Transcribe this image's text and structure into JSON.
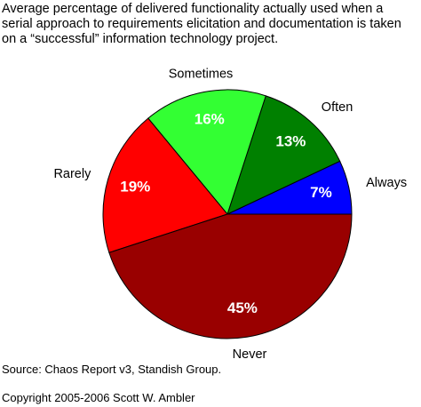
{
  "chart_data": {
    "type": "pie",
    "title": "Average percentage of delivered functionality actually used when a serial approach to requirements elicitation and documentation is taken on a “successful” information technology project.",
    "categories": [
      "Always",
      "Often",
      "Sometimes",
      "Rarely",
      "Never"
    ],
    "values": [
      7,
      13,
      16,
      19,
      45
    ],
    "value_labels": [
      "7%",
      "13%",
      "16%",
      "19%",
      "45%"
    ],
    "colors": [
      "#0000ff",
      "#008000",
      "#33ff33",
      "#ff0000",
      "#990000"
    ],
    "notes": [
      "Source: Chaos Report v3, Standish Group.",
      "Copyright 2005-2006 Scott W. Ambler"
    ]
  }
}
